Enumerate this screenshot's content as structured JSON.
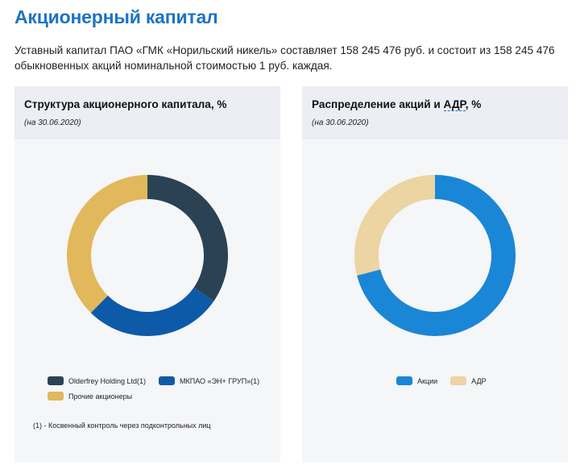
{
  "page": {
    "title": "Акционерный капитал",
    "intro": "Уставный капитал ПАО «ГМК «Норильский никель» составляет 158 245 476 руб. и состоит из 158 245 476 обыкновенных акций номинальной стоимостью 1 руб. каждая."
  },
  "left_card": {
    "title": "Структура акционерного капитала, %",
    "date": "(на 30.06.2020)",
    "footnote": "(1) - Косвенный контроль через подконтрольных лиц"
  },
  "right_card": {
    "title_prefix": "Распределение акций и ",
    "title_abbr": "АДР",
    "title_suffix": ", %",
    "date": "(на 30.06.2020)"
  },
  "chart_data": [
    {
      "type": "pie",
      "title": "Структура акционерного капитала, %",
      "subtitle": "(на 30.06.2020)",
      "categories": [
        "Olderfrey Holding Ltd(1)",
        "МКПАО «ЭН+ ГРУП»(1)",
        "Прочие акционеры"
      ],
      "values": [
        34.6,
        27.8,
        37.6
      ],
      "colors": [
        "#2b4255",
        "#0d5aa8",
        "#e1b85b"
      ],
      "legend_position": "bottom"
    },
    {
      "type": "pie",
      "title": "Распределение акций и АДР, %",
      "subtitle": "(на 30.06.2020)",
      "categories": [
        "Акции",
        "АДР"
      ],
      "values": [
        71,
        29
      ],
      "colors": [
        "#1a86d6",
        "#ecd4a3"
      ],
      "legend_position": "bottom"
    }
  ]
}
